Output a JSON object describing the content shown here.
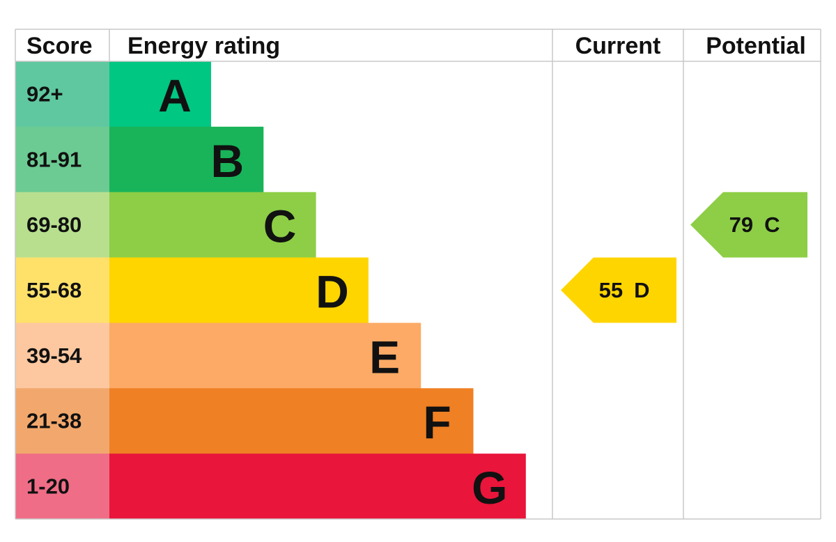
{
  "header": {
    "score": "Score",
    "rating": "Energy rating",
    "current": "Current",
    "potential": "Potential"
  },
  "bands": [
    {
      "score": "92+",
      "letter": "A",
      "color": "#00c781",
      "score_color": "#5fc8a0"
    },
    {
      "score": "81-91",
      "letter": "B",
      "color": "#19b459",
      "score_color": "#6ccb92"
    },
    {
      "score": "69-80",
      "letter": "C",
      "color": "#8dce46",
      "score_color": "#b7df8e"
    },
    {
      "score": "55-68",
      "letter": "D",
      "color": "#ffd500",
      "score_color": "#ffe16a"
    },
    {
      "score": "39-54",
      "letter": "E",
      "color": "#fcaa65",
      "score_color": "#fdc8a0"
    },
    {
      "score": "21-38",
      "letter": "F",
      "color": "#ef8023",
      "score_color": "#f2a86c"
    },
    {
      "score": "1-20",
      "letter": "G",
      "color": "#e9153b",
      "score_color": "#ef6d86"
    }
  ],
  "current": {
    "score": 55,
    "band": "D"
  },
  "potential": {
    "score": 79,
    "band": "C"
  }
}
